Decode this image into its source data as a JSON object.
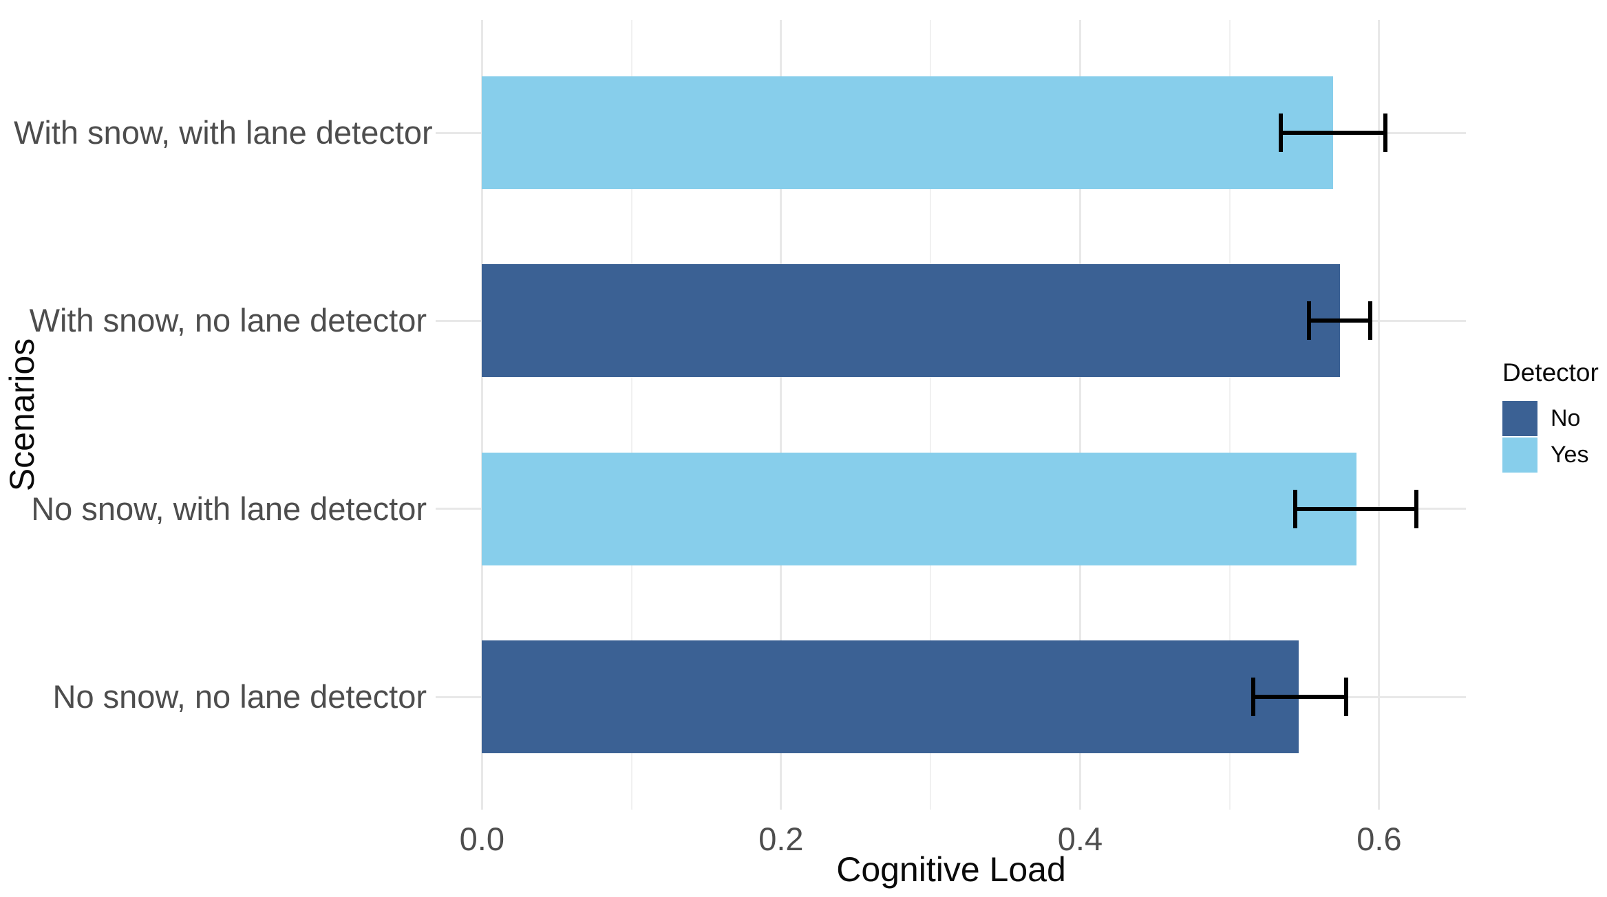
{
  "chart_data": {
    "type": "bar",
    "orientation": "horizontal",
    "title": "",
    "xlabel": "Cognitive Load",
    "ylabel": "Scenarios",
    "xlim": [
      -0.031,
      0.658
    ],
    "x_major_ticks": [
      0.0,
      0.2,
      0.4,
      0.6
    ],
    "x_tick_labels": [
      "0.0",
      "0.2",
      "0.4",
      "0.6"
    ],
    "x_minor_ticks": [
      0.1,
      0.3,
      0.5
    ],
    "grid": true,
    "categories": [
      "With snow, with lane detector",
      "With snow, no lane detector",
      "No snow, with lane detector",
      "No snow, no lane detector"
    ],
    "rows": [
      {
        "category": "With snow, with lane detector",
        "detector": "Yes",
        "value": 0.569,
        "ci_low": 0.534,
        "ci_high": 0.604
      },
      {
        "category": "With snow, no lane detector",
        "detector": "No",
        "value": 0.574,
        "ci_low": 0.553,
        "ci_high": 0.594
      },
      {
        "category": "No snow, with lane detector",
        "detector": "Yes",
        "value": 0.585,
        "ci_low": 0.544,
        "ci_high": 0.625
      },
      {
        "category": "No snow, no lane detector",
        "detector": "No",
        "value": 0.546,
        "ci_low": 0.516,
        "ci_high": 0.578
      }
    ],
    "colors": {
      "No": "#3b6194",
      "Yes": "#87ceeb"
    },
    "error_bar_color": "#000000",
    "legend": {
      "title": "Detector",
      "position": "right",
      "entries": [
        {
          "label": "No",
          "color": "#3b6194"
        },
        {
          "label": "Yes",
          "color": "#87ceeb"
        }
      ]
    }
  }
}
